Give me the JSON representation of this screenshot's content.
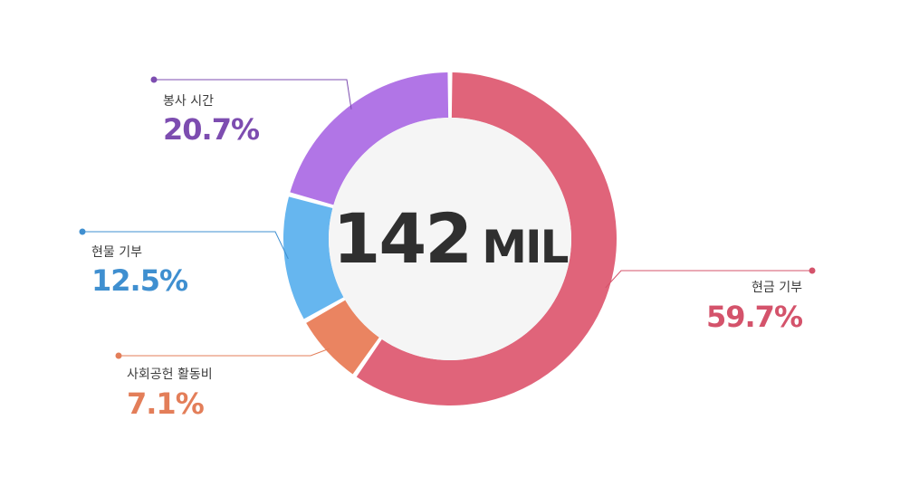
{
  "center_label": {
    "number": "142",
    "unit": "MIL"
  },
  "chart_data": {
    "type": "pie",
    "total_label": "142 MIL",
    "slices": [
      {
        "name": "현금 기부",
        "percent_label": "59.7%",
        "value": 59.7,
        "color": "#e0647a"
      },
      {
        "name": "사회공헌 활동비",
        "percent_label": "7.1%",
        "value": 7.1,
        "color": "#ea8461"
      },
      {
        "name": "현물 기부",
        "percent_label": "12.5%",
        "value": 12.5,
        "color": "#66b6ef"
      },
      {
        "name": "봉사 시간",
        "percent_label": "20.7%",
        "value": 20.7,
        "color": "#b175e6"
      }
    ],
    "label_colors": [
      "#d4536b",
      "#e37e59",
      "#3f8fd0",
      "#7d4db0"
    ],
    "center_fill": "#f5f5f5"
  }
}
